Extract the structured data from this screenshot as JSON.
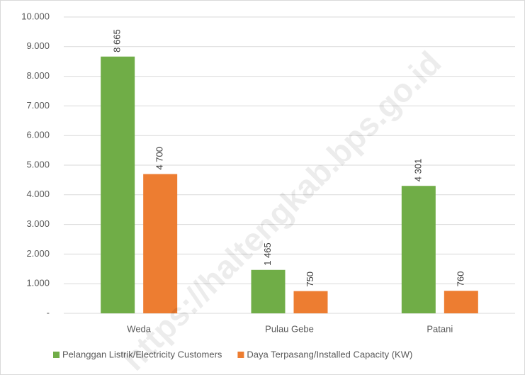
{
  "chart_data": {
    "type": "bar",
    "categories": [
      "Weda",
      "Pulau Gebe",
      "Patani"
    ],
    "series": [
      {
        "name": "Pelanggan Listrik/Electricity Customers",
        "color": "#70ad47",
        "values": [
          8665,
          1465,
          4301
        ],
        "value_labels": [
          "8 665",
          "1 465",
          "4 301"
        ]
      },
      {
        "name": "Daya Terpasang/Installed Capacity (KW)",
        "color": "#ed7d31",
        "values": [
          4700,
          750,
          760
        ],
        "value_labels": [
          "4 700",
          "750",
          "760"
        ]
      }
    ],
    "ylim": [
      0,
      10000
    ],
    "yticks": [
      {
        "value": 0,
        "label": "-"
      },
      {
        "value": 1000,
        "label": "1.000"
      },
      {
        "value": 2000,
        "label": "2.000"
      },
      {
        "value": 3000,
        "label": "3.000"
      },
      {
        "value": 4000,
        "label": "4.000"
      },
      {
        "value": 5000,
        "label": "5.000"
      },
      {
        "value": 6000,
        "label": "6.000"
      },
      {
        "value": 7000,
        "label": "7.000"
      },
      {
        "value": 8000,
        "label": "8.000"
      },
      {
        "value": 9000,
        "label": "9.000"
      },
      {
        "value": 10000,
        "label": "10.000"
      }
    ],
    "grid": true,
    "legend": "bottom",
    "watermark": "https://haltengkab.bps.go.id"
  }
}
